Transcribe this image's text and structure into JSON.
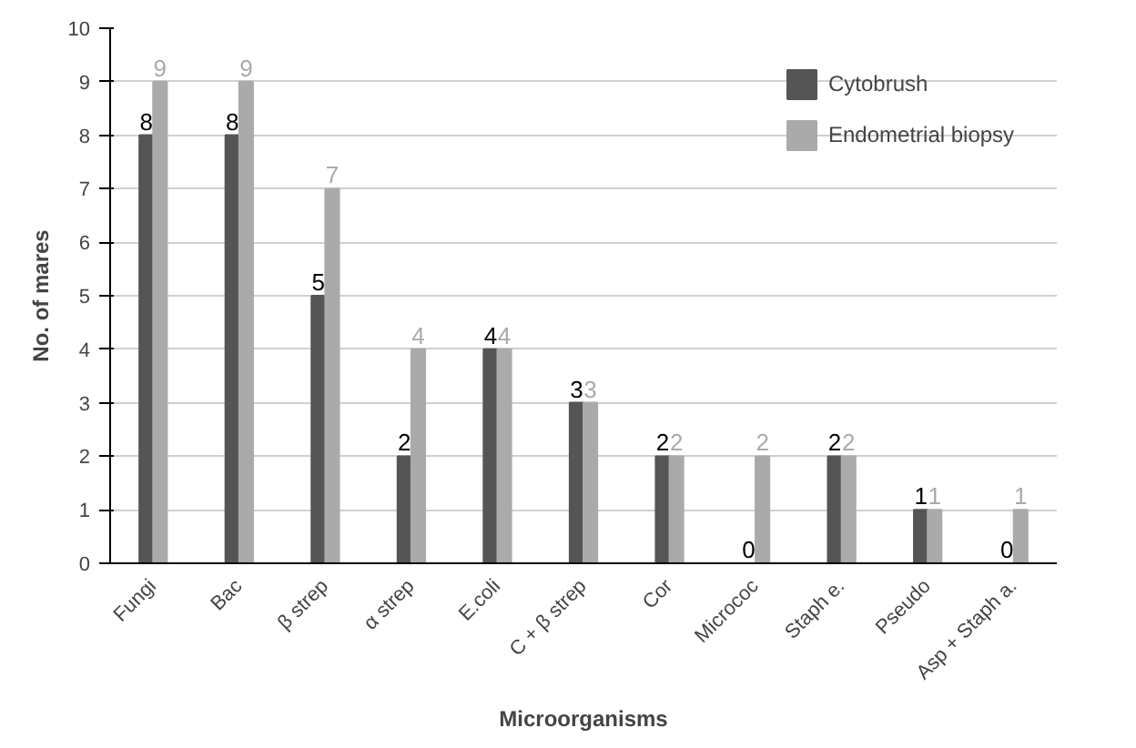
{
  "chart_data": {
    "type": "bar",
    "xlabel": "Microorganisms",
    "ylabel": "No. of mares",
    "categories": [
      "Fungi",
      "Bac",
      "β strep",
      "α strep",
      "E.coli",
      "C + β strep",
      "Cor",
      "Micrococ",
      "Staph e.",
      "Pseudo",
      "Asp + Staph a."
    ],
    "series": [
      {
        "name": "Cytobrush",
        "color": "#555555",
        "values": [
          8,
          8,
          5,
          2,
          4,
          3,
          2,
          0,
          2,
          1,
          0
        ]
      },
      {
        "name": "Endometrial biopsy",
        "color": "#aaaaaa",
        "values": [
          9,
          9,
          7,
          4,
          4,
          3,
          2,
          2,
          2,
          1,
          1
        ]
      }
    ],
    "ylim": [
      0,
      10
    ],
    "yticks": [
      0,
      1,
      2,
      3,
      4,
      5,
      6,
      7,
      8,
      9,
      10
    ],
    "grid": "y",
    "legend": "right",
    "data_labels": true
  }
}
